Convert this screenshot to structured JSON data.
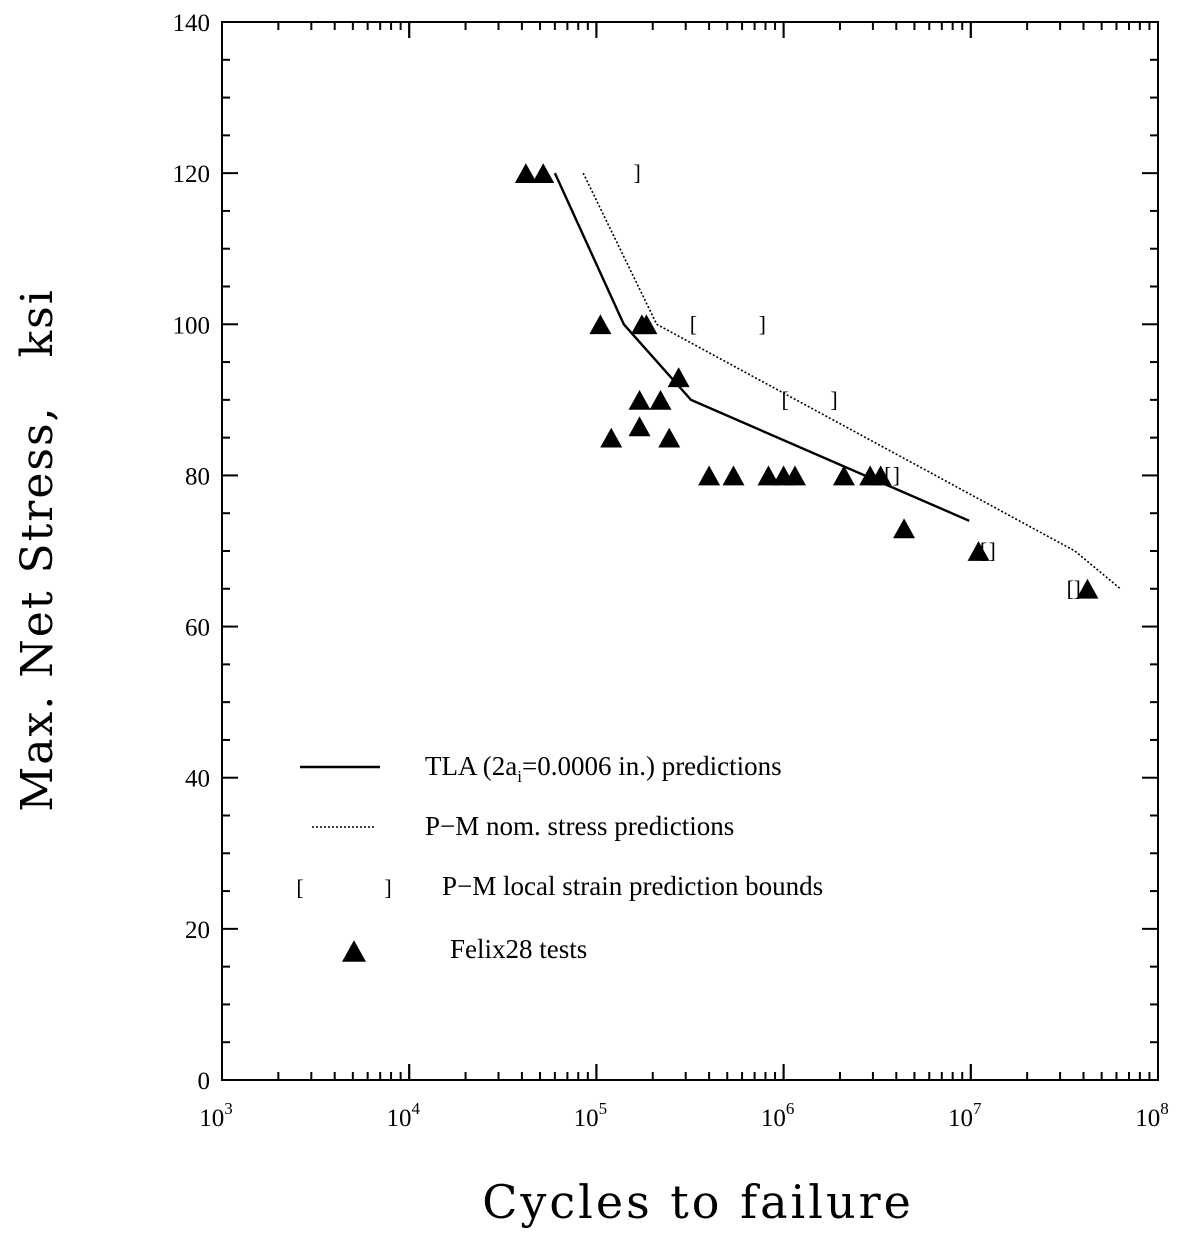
{
  "chart_data": {
    "type": "scatter",
    "xlabel": "Cycles to failure",
    "ylabel": "Max. Net Stress,   ksi",
    "x_scale": "log",
    "xlim": [
      1000,
      100000000
    ],
    "ylim": [
      0,
      140
    ],
    "x_ticks": [
      {
        "base": "10",
        "exp": "3"
      },
      {
        "base": "10",
        "exp": "4"
      },
      {
        "base": "10",
        "exp": "5"
      },
      {
        "base": "10",
        "exp": "6"
      },
      {
        "base": "10",
        "exp": "7"
      },
      {
        "base": "10",
        "exp": "8"
      }
    ],
    "y_ticks": [
      "0",
      "20",
      "40",
      "60",
      "80",
      "100",
      "120",
      "140"
    ],
    "legend_position": "lower-left",
    "series": [
      {
        "name": "TLA (2a_i=0.0006 in.) predictions",
        "kind": "line",
        "style": "solid",
        "points": [
          [
            60000,
            120
          ],
          [
            140000,
            100
          ],
          [
            320000,
            90
          ],
          [
            9800000,
            74
          ]
        ]
      },
      {
        "name": "P-M nom. stress predictions",
        "kind": "line",
        "style": "dotted",
        "points": [
          [
            85000,
            120
          ],
          [
            210000,
            100
          ],
          [
            36000000,
            70
          ],
          [
            63000000,
            65
          ]
        ]
      },
      {
        "name": "P-M local strain prediction bounds",
        "kind": "bounds",
        "ranges": [
          {
            "y": 120,
            "lower": null,
            "upper": 165000
          },
          {
            "y": 100,
            "lower": 330000,
            "upper": 770000
          },
          {
            "y": 90,
            "lower": 1020000,
            "upper": 1860000
          },
          {
            "y": 80,
            "lower": 3600000,
            "upper": 4000000
          },
          {
            "y": 70,
            "lower": 11700000,
            "upper": 13000000
          },
          {
            "y": 65,
            "lower": 34000000,
            "upper": 37000000
          }
        ]
      },
      {
        "name": "Felix28 tests",
        "kind": "scatter",
        "marker": "filled-triangle",
        "points": [
          [
            42000,
            120
          ],
          [
            52000,
            120
          ],
          [
            105000,
            100
          ],
          [
            175000,
            100
          ],
          [
            185000,
            100
          ],
          [
            275000,
            93
          ],
          [
            170000,
            90
          ],
          [
            220000,
            90
          ],
          [
            120000,
            85
          ],
          [
            245000,
            85
          ],
          [
            170000,
            86.5
          ],
          [
            400000,
            80
          ],
          [
            540000,
            80
          ],
          [
            830000,
            80
          ],
          [
            1000000,
            80
          ],
          [
            1150000,
            80
          ],
          [
            2100000,
            80
          ],
          [
            2900000,
            80
          ],
          [
            3300000,
            80
          ],
          [
            4400000,
            73
          ],
          [
            11000000,
            70
          ],
          [
            42000000,
            65
          ]
        ]
      }
    ],
    "legend": [
      {
        "label": "TLA (2a",
        "sub": "i",
        "tail": "=0.0006 in.) predictions",
        "symbol": "solid-line"
      },
      {
        "label": "P−M nom. stress predictions",
        "sub": "",
        "tail": "",
        "symbol": "dotted-line"
      },
      {
        "label": "P−M local strain prediction bounds",
        "sub": "",
        "tail": "",
        "symbol": "brackets"
      },
      {
        "label": "Felix28 tests",
        "sub": "",
        "tail": "",
        "symbol": "triangle"
      }
    ]
  }
}
